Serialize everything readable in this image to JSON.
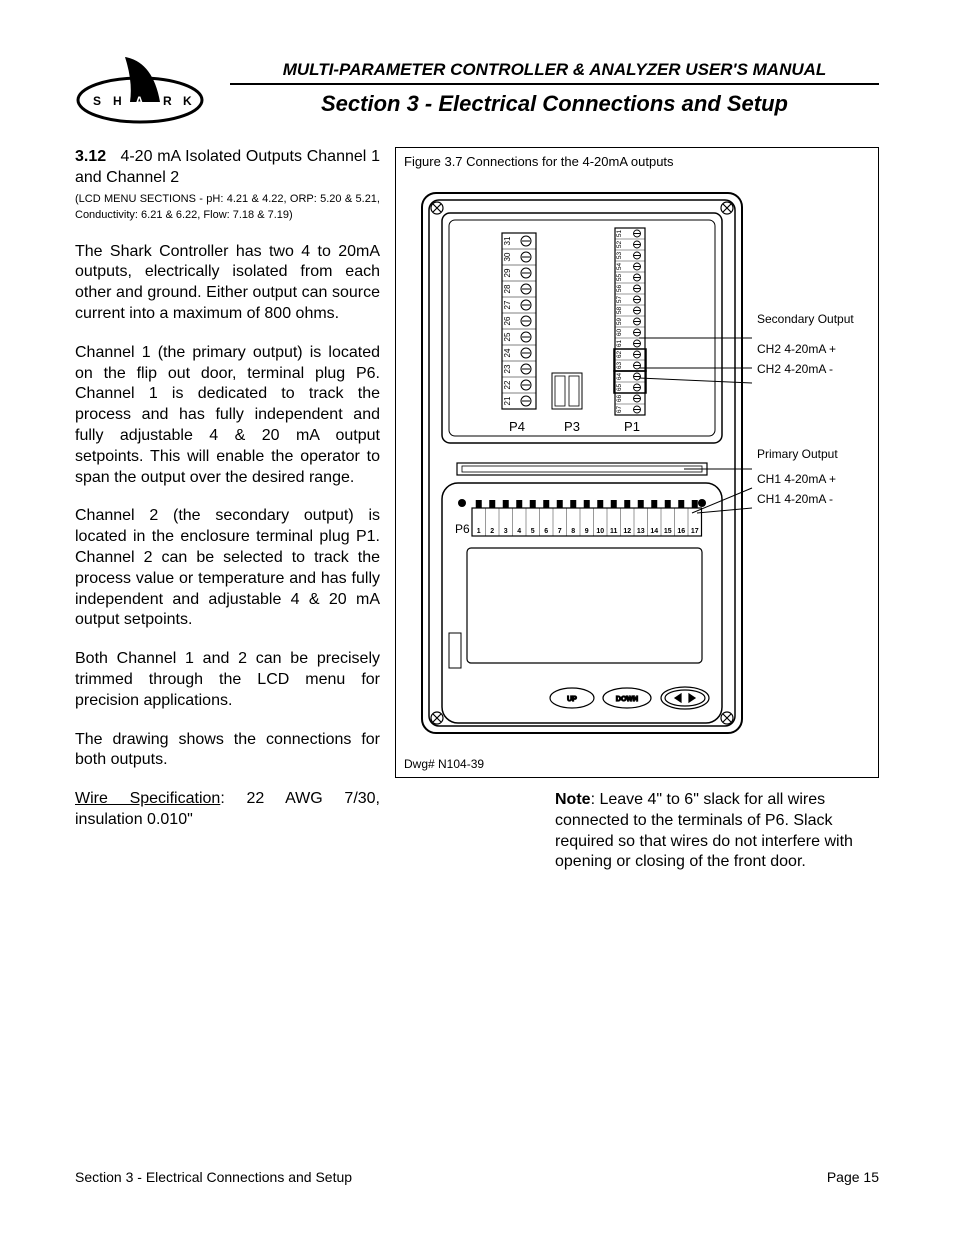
{
  "header": {
    "manual_title": "MULTI-PARAMETER CONTROLLER & ANALYZER USER'S MANUAL",
    "section_title": "Section 3 - Electrical Connections and Setup"
  },
  "logo": {
    "letters": [
      "S",
      "H",
      "A",
      "R",
      "K"
    ],
    "fin_color": "#000000",
    "stroke": "#000000"
  },
  "subsection": {
    "number": "3.12",
    "title_line1": "4-20 mA Isolated Outputs",
    "title_line2": "Channel 1 and Channel 2",
    "menu_note": "(LCD MENU SECTIONS - pH: 4.21 & 4.22, ORP: 5.20 & 5.21, Conductivity: 6.21 & 6.22, Flow: 7.18 & 7.19)"
  },
  "paragraphs": {
    "p1": "The Shark Controller has two 4 to 20mA outputs, electrically isolated from each other and ground. Either output can source current into a maximum of 800 ohms.",
    "p2": "Channel 1 (the primary output) is located on the flip out door, terminal plug P6. Channel 1 is dedicated to track the process and has fully independent and fully adjustable 4 & 20 mA output setpoints. This will enable the operator to span the output over the desired range.",
    "p3": "Channel 2 (the secondary output) is located in the enclosure terminal plug P1. Channel 2 can be selected to track the process value or temperature and has fully independent and adjustable 4 & 20 mA output setpoints.",
    "p4": "Both Channel 1 and 2 can be precisely trimmed through the LCD menu for precision applications.",
    "p5": "The drawing shows the connections for both outputs.",
    "wire_label": "Wire Specification",
    "wire_spec": ": 22 AWG 7/30, insulation 0.010\""
  },
  "figure": {
    "caption": "Figure 3.7 Connections for the 4-20mA outputs",
    "dwg": "Dwg# N104-39",
    "labels": {
      "secondary": "Secondary Output",
      "ch2p": "CH2 4-20mA +",
      "ch2m": "CH2 4-20mA -",
      "primary": "Primary Output",
      "ch1p": "CH1 4-20mA +",
      "ch1m": "CH1 4-20mA -",
      "p4": "P4",
      "p3": "P3",
      "p1": "P1",
      "p6": "P6",
      "up": "UP",
      "down": "DOWN"
    },
    "p4_numbers": [
      "21",
      "22",
      "23",
      "24",
      "25",
      "26",
      "27",
      "28",
      "29",
      "30",
      "31"
    ],
    "p1_numbers": [
      "51",
      "52",
      "53",
      "54",
      "55",
      "56",
      "57",
      "58",
      "59",
      "60",
      "61",
      "62",
      "63",
      "64",
      "65",
      "66",
      "67"
    ],
    "p6_numbers": [
      "1",
      "2",
      "3",
      "4",
      "5",
      "6",
      "7",
      "8",
      "9",
      "10",
      "11",
      "12",
      "13",
      "14",
      "15",
      "16",
      "17"
    ]
  },
  "note": {
    "bold": "Note",
    "text": ": Leave 4\" to 6\" slack for all wires connected to the terminals of P6. Slack required so that wires do not interfere with opening or closing of the front door."
  },
  "footer": {
    "left": "Section 3 - Electrical Connections and Setup",
    "right": "Page 15"
  },
  "colors": {
    "text": "#000000",
    "bg": "#ffffff",
    "stroke": "#000000",
    "grey_fill": "#e0e0e0"
  }
}
